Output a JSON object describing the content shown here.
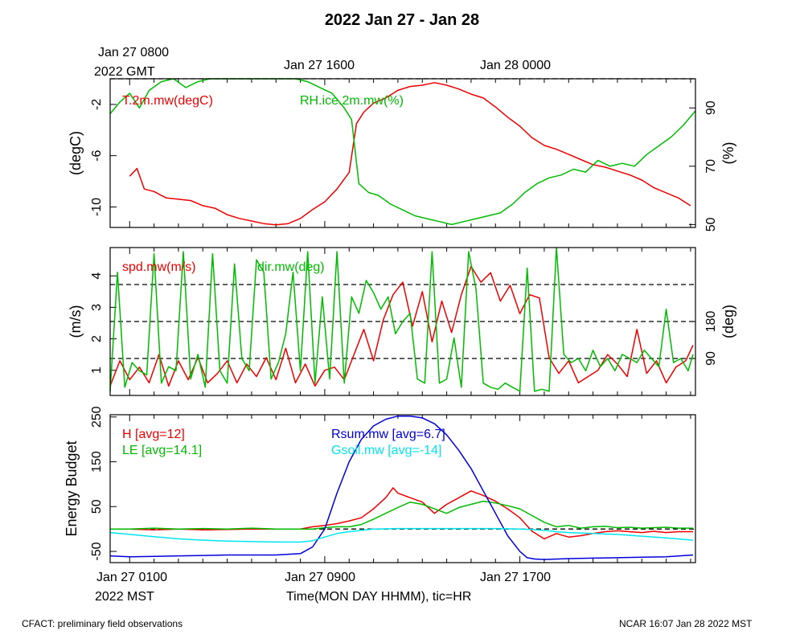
{
  "title": "2022 Jan 27 - Jan 28",
  "top_axis": {
    "ticks": [
      "Jan 27 0800",
      "Jan 27 1600",
      "Jan 28 0000"
    ],
    "year_label": "2022 GMT"
  },
  "bottom_axis": {
    "ticks": [
      "Jan 27 0100",
      "Jan 27 0900",
      "Jan 27 1700"
    ],
    "year_label": "2022 MST",
    "label": "Time(MON DAY HHMM), tic=HR"
  },
  "footer": {
    "left": "CFACT: preliminary field observations",
    "right": "NCAR 16:07 Jan 28 2022 MST"
  },
  "colors": {
    "red": "#ee0000",
    "green": "#00bb00",
    "blue": "#0000dd",
    "cyan": "#00e5ee"
  },
  "chart_data": [
    {
      "type": "line",
      "panel": "temperature-humidity",
      "x_unit": "hours since Jan 27 0000 MST",
      "xlim": [
        0.2,
        24.2
      ],
      "ylabel": "(degC)",
      "ylim": [
        -11.6,
        0.0
      ],
      "yticks": [
        -10,
        -6,
        -2
      ],
      "ylabel_right": "(%)",
      "ylim_right": [
        49,
        100
      ],
      "yticks_right": [
        50,
        70,
        90
      ],
      "reference_lines_right": [
        100
      ],
      "series": [
        {
          "name": "T.2m.mw(degC)",
          "axis": "left",
          "color": "red",
          "x": [
            1.0,
            1.3,
            1.6,
            2.0,
            2.5,
            3.0,
            3.5,
            4.0,
            4.5,
            5.0,
            5.5,
            6.0,
            6.5,
            7.0,
            7.5,
            8.0,
            8.5,
            9.0,
            9.5,
            10.0,
            10.3,
            10.6,
            11.0,
            11.5,
            12.0,
            12.5,
            13.0,
            13.5,
            14.0,
            14.5,
            15.0,
            15.5,
            16.0,
            16.5,
            17.0,
            17.5,
            18.0,
            18.5,
            19.0,
            19.5,
            20.0,
            20.5,
            21.0,
            21.5,
            22.0,
            22.5,
            23.0,
            23.5,
            24.0
          ],
          "y": [
            -7.6,
            -7.0,
            -8.6,
            -8.8,
            -9.3,
            -9.4,
            -9.5,
            -9.9,
            -10.1,
            -10.6,
            -10.9,
            -11.1,
            -11.3,
            -11.4,
            -11.3,
            -10.9,
            -10.2,
            -9.6,
            -8.6,
            -7.3,
            -3.5,
            -2.6,
            -1.9,
            -1.5,
            -0.9,
            -0.6,
            -0.5,
            -0.3,
            -0.5,
            -0.8,
            -1.2,
            -1.5,
            -2.2,
            -3.0,
            -3.7,
            -4.6,
            -5.2,
            -5.5,
            -5.9,
            -6.3,
            -6.7,
            -6.9,
            -7.2,
            -7.5,
            -7.9,
            -8.5,
            -8.9,
            -9.3,
            -9.9
          ]
        },
        {
          "name": "RH.ice.2m.mw(%)",
          "axis": "right",
          "color": "green",
          "x": [
            0.2,
            0.6,
            1.0,
            1.4,
            1.8,
            2.3,
            2.8,
            3.3,
            3.8,
            4.3,
            4.8,
            5.3,
            5.8,
            6.3,
            6.8,
            7.3,
            7.8,
            8.3,
            8.8,
            9.3,
            9.8,
            10.1,
            10.4,
            10.8,
            11.2,
            11.7,
            12.2,
            12.7,
            13.2,
            13.7,
            14.2,
            14.7,
            15.2,
            15.7,
            16.2,
            16.7,
            17.2,
            17.7,
            18.2,
            18.7,
            19.2,
            19.7,
            20.2,
            20.7,
            21.2,
            21.7,
            22.2,
            22.7,
            23.2,
            23.7,
            24.2
          ],
          "y": [
            88,
            92,
            95,
            90,
            96,
            99,
            100,
            97,
            99,
            100,
            100,
            100,
            100,
            100,
            100,
            100,
            100,
            99,
            97,
            95,
            90,
            86,
            64,
            61,
            60,
            57,
            55,
            53,
            52,
            51,
            50,
            51,
            52,
            53,
            54,
            57,
            61,
            64,
            66,
            67,
            69,
            68,
            72,
            70,
            71,
            70,
            74,
            77,
            80,
            84,
            89
          ]
        }
      ]
    },
    {
      "type": "line",
      "panel": "wind",
      "x_unit": "hours since Jan 27 0000 MST",
      "xlim": [
        0.2,
        24.2
      ],
      "ylabel": "(m/s)",
      "ylim": [
        0.2,
        4.9
      ],
      "yticks": [
        1,
        2,
        3,
        4
      ],
      "ylabel_right": "(deg)",
      "ylim_right": [
        0,
        360
      ],
      "yticks_right": [
        90,
        180
      ],
      "reference_lines_right": [
        90,
        180,
        270
      ],
      "series": [
        {
          "name": "spd.mw(m/s)",
          "axis": "left",
          "color": "red",
          "x": [
            0.2,
            0.6,
            1.0,
            1.4,
            1.8,
            2.2,
            2.6,
            3.0,
            3.4,
            3.8,
            4.2,
            4.6,
            5.0,
            5.4,
            5.8,
            6.2,
            6.6,
            7.0,
            7.4,
            7.8,
            8.2,
            8.6,
            9.0,
            9.4,
            9.8,
            10.2,
            10.6,
            11.0,
            11.4,
            11.8,
            12.2,
            12.6,
            13.0,
            13.4,
            13.8,
            14.2,
            14.6,
            15.0,
            15.4,
            15.8,
            16.2,
            16.6,
            17.0,
            17.4,
            17.8,
            18.2,
            18.6,
            19.0,
            19.4,
            19.8,
            20.2,
            20.6,
            21.0,
            21.4,
            21.8,
            22.2,
            22.6,
            23.0,
            23.4,
            23.8,
            24.1
          ],
          "y": [
            0.5,
            1.3,
            0.7,
            1.1,
            0.6,
            1.5,
            0.5,
            1.3,
            0.7,
            1.4,
            0.6,
            0.9,
            1.3,
            0.6,
            1.2,
            0.8,
            1.4,
            0.7,
            1.7,
            0.6,
            1.2,
            0.5,
            1.0,
            1.1,
            0.7,
            1.5,
            2.3,
            1.3,
            2.6,
            3.4,
            3.8,
            2.4,
            3.5,
            1.9,
            3.2,
            2.2,
            3.4,
            4.3,
            3.8,
            4.1,
            3.2,
            3.7,
            2.8,
            3.4,
            3.3,
            1.4,
            0.9,
            1.3,
            0.6,
            0.8,
            1.0,
            1.5,
            1.2,
            0.8,
            2.3,
            0.9,
            1.3,
            0.6,
            1.1,
            1.3,
            1.8
          ]
        },
        {
          "name": "dir.mw(deg)",
          "axis": "right",
          "color": "green",
          "x": [
            0.2,
            0.5,
            0.8,
            1.1,
            1.4,
            1.7,
            2.0,
            2.3,
            2.6,
            2.9,
            3.2,
            3.5,
            3.8,
            4.1,
            4.4,
            4.7,
            5.0,
            5.3,
            5.6,
            5.9,
            6.2,
            6.5,
            6.8,
            7.1,
            7.4,
            7.7,
            8.0,
            8.3,
            8.6,
            8.9,
            9.2,
            9.5,
            9.8,
            10.1,
            10.4,
            10.7,
            11.0,
            11.3,
            11.6,
            11.9,
            12.2,
            12.5,
            12.8,
            13.1,
            13.4,
            13.7,
            14.0,
            14.3,
            14.6,
            14.9,
            15.2,
            15.5,
            15.8,
            16.1,
            16.4,
            16.7,
            17.0,
            17.3,
            17.6,
            17.9,
            18.2,
            18.5,
            18.8,
            19.1,
            19.4,
            19.7,
            20.0,
            20.3,
            20.6,
            20.9,
            21.2,
            21.5,
            21.8,
            22.1,
            22.4,
            22.7,
            23.0,
            23.3,
            23.6,
            23.9,
            24.1
          ],
          "y": [
            10,
            300,
            20,
            80,
            60,
            50,
            345,
            30,
            70,
            60,
            350,
            40,
            100,
            20,
            345,
            60,
            30,
            320,
            90,
            60,
            330,
            300,
            40,
            80,
            150,
            300,
            60,
            350,
            30,
            240,
            40,
            350,
            30,
            240,
            200,
            280,
            250,
            210,
            240,
            150,
            180,
            200,
            40,
            30,
            350,
            30,
            40,
            140,
            20,
            350,
            260,
            30,
            20,
            15,
            30,
            20,
            10,
            310,
            10,
            15,
            10,
            360,
            100,
            80,
            90,
            60,
            110,
            70,
            90,
            60,
            100,
            90,
            80,
            110,
            90,
            70,
            210,
            80,
            90,
            60,
            100
          ]
        }
      ]
    },
    {
      "type": "line",
      "panel": "energy-budget",
      "x_unit": "hours since Jan 27 0000 MST",
      "xlim": [
        0.2,
        24.2
      ],
      "ylabel": "Energy Budget",
      "ylim": [
        -75,
        255
      ],
      "yticks": [
        -50,
        50,
        150,
        250
      ],
      "reference_lines": [
        0
      ],
      "series": [
        {
          "name": "H [avg=12]",
          "color": "red",
          "x": [
            0.2,
            1.0,
            2.0,
            3.0,
            4.0,
            5.0,
            6.0,
            7.0,
            8.0,
            8.5,
            9.0,
            9.5,
            10.0,
            10.5,
            11.0,
            11.5,
            11.8,
            12.0,
            12.5,
            13.0,
            13.5,
            14.0,
            14.5,
            15.0,
            15.5,
            16.0,
            16.5,
            17.0,
            17.5,
            18.0,
            18.5,
            19.0,
            19.5,
            20.0,
            20.5,
            21.0,
            21.5,
            22.0,
            22.5,
            23.0,
            23.5,
            24.1
          ],
          "y": [
            0,
            0,
            -2,
            0,
            -2,
            -1,
            0,
            0,
            0,
            5,
            8,
            12,
            18,
            25,
            45,
            70,
            92,
            80,
            70,
            60,
            35,
            55,
            70,
            85,
            75,
            62,
            45,
            25,
            -5,
            -22,
            -10,
            -18,
            -15,
            -10,
            -6,
            -4,
            -6,
            -8,
            -5,
            -8,
            -6,
            -6
          ]
        },
        {
          "name": "LE [avg=14.1]",
          "color": "green",
          "x": [
            0.2,
            1.0,
            2.0,
            3.0,
            4.0,
            5.0,
            6.0,
            7.0,
            8.0,
            8.5,
            9.0,
            9.5,
            10.0,
            10.5,
            11.0,
            11.5,
            12.0,
            12.5,
            13.0,
            13.5,
            14.0,
            14.5,
            15.0,
            15.5,
            16.0,
            16.5,
            17.0,
            17.5,
            18.0,
            18.5,
            19.0,
            19.5,
            20.0,
            20.5,
            21.0,
            21.5,
            22.0,
            22.5,
            23.0,
            23.5,
            24.1
          ],
          "y": [
            0,
            0,
            2,
            0,
            1,
            0,
            2,
            0,
            0,
            0,
            3,
            5,
            5,
            10,
            22,
            35,
            48,
            60,
            55,
            45,
            35,
            48,
            55,
            62,
            58,
            52,
            45,
            30,
            15,
            5,
            8,
            2,
            5,
            6,
            3,
            4,
            2,
            3,
            4,
            2,
            2
          ]
        },
        {
          "name": "Rsum.mw [avg=6.7]",
          "color": "blue",
          "x": [
            0.2,
            1.0,
            2.0,
            3.0,
            4.0,
            5.0,
            6.0,
            7.0,
            8.0,
            8.5,
            9.0,
            9.5,
            10.0,
            10.5,
            11.0,
            11.5,
            12.0,
            12.5,
            13.0,
            13.5,
            14.0,
            14.5,
            15.0,
            15.5,
            16.0,
            16.5,
            17.0,
            17.3,
            17.6,
            18.0,
            19.0,
            20.0,
            21.0,
            22.0,
            23.0,
            24.1
          ],
          "y": [
            -60,
            -62,
            -61,
            -60,
            -59,
            -58,
            -58,
            -58,
            -55,
            -40,
            0,
            80,
            150,
            200,
            230,
            245,
            252,
            252,
            248,
            235,
            210,
            175,
            135,
            85,
            35,
            -15,
            -50,
            -64,
            -67,
            -68,
            -66,
            -65,
            -64,
            -63,
            -62,
            -58
          ]
        },
        {
          "name": "Gsoil.mw [avg=-14]",
          "color": "cyan",
          "x": [
            0.2,
            1.0,
            2.0,
            3.0,
            4.0,
            5.0,
            6.0,
            7.0,
            8.0,
            8.5,
            9.0,
            9.5,
            10.0,
            10.5,
            11.0,
            12.0,
            13.0,
            14.0,
            15.0,
            16.0,
            17.0,
            17.5,
            18.0,
            18.5,
            19.0,
            20.0,
            21.0,
            22.0,
            23.0,
            24.1
          ],
          "y": [
            -8,
            -12,
            -17,
            -22,
            -25,
            -27,
            -28,
            -29,
            -29,
            -26,
            -18,
            -10,
            -6,
            -3,
            0,
            1,
            1,
            1,
            1,
            1,
            0,
            -1,
            -3,
            -6,
            -8,
            -10,
            -12,
            -16,
            -20,
            -25
          ]
        }
      ]
    }
  ]
}
